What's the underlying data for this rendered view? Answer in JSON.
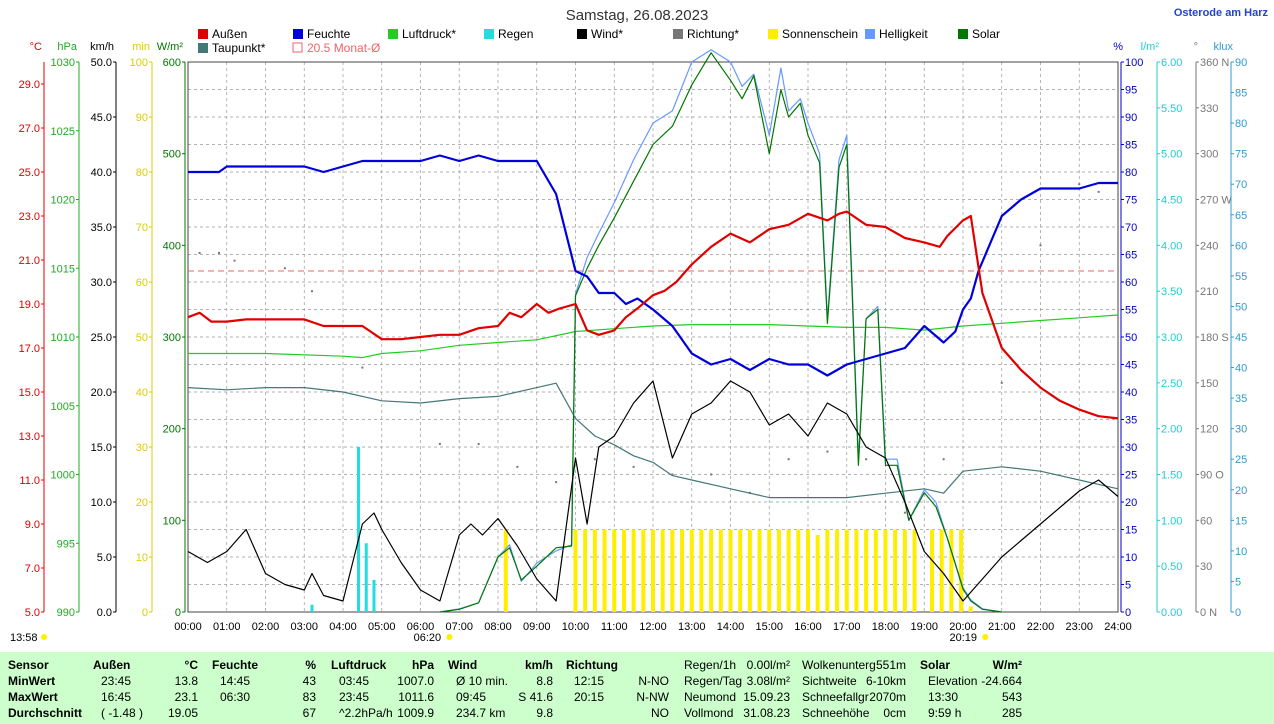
{
  "title": "Samstag, 26.08.2023",
  "location": "Osterode am Harz",
  "legend": [
    {
      "label": "Außen",
      "color": "#e00000"
    },
    {
      "label": "Feuchte",
      "color": "#0000dd"
    },
    {
      "label": "Luftdruck*",
      "color": "#22cc22"
    },
    {
      "label": "Regen",
      "color": "#22dddd"
    },
    {
      "label": "Wind*",
      "color": "#000000"
    },
    {
      "label": "Richtung*",
      "color": "#777777"
    },
    {
      "label": "Sonnenschein",
      "color": "#ffee00"
    },
    {
      "label": "Helligkeit",
      "color": "#6699ff"
    },
    {
      "label": "Solar",
      "color": "#007700"
    },
    {
      "label": "Taupunkt*",
      "color": "#447777"
    },
    {
      "label": "20.5 Monat-Ø",
      "color": "#ee6666"
    }
  ],
  "axes_left": [
    {
      "unit": "°C",
      "color": "#e00000",
      "ticks": [
        "29.0",
        "27.0",
        "25.0",
        "23.0",
        "21.0",
        "19.0",
        "17.0",
        "15.0",
        "13.0",
        "11.0",
        "9.0",
        "7.0",
        "5.0"
      ]
    },
    {
      "unit": "hPa",
      "color": "#22aa22",
      "ticks": [
        "1030",
        "1025",
        "1020",
        "1015",
        "1010",
        "1005",
        "1000",
        "995",
        "990"
      ]
    },
    {
      "unit": "km/h",
      "color": "#000000",
      "ticks": [
        "50.0",
        "45.0",
        "40.0",
        "35.0",
        "30.0",
        "25.0",
        "20.0",
        "15.0",
        "10.0",
        "5.0",
        "0.0"
      ]
    },
    {
      "unit": "min",
      "color": "#ddcc00",
      "ticks": [
        "100",
        "90",
        "80",
        "70",
        "60",
        "50",
        "40",
        "30",
        "20",
        "10",
        "0"
      ]
    },
    {
      "unit": "W/m²",
      "color": "#007700",
      "ticks": [
        "600",
        "500",
        "400",
        "300",
        "200",
        "100",
        "0"
      ]
    }
  ],
  "axes_right": [
    {
      "unit": "%",
      "color": "#0000cc",
      "ticks": [
        "100",
        "95",
        "90",
        "85",
        "80",
        "75",
        "70",
        "65",
        "60",
        "55",
        "50",
        "45",
        "40",
        "35",
        "30",
        "25",
        "20",
        "15",
        "10",
        "5",
        "0"
      ]
    },
    {
      "unit": "l/m²",
      "color": "#22cccc",
      "ticks": [
        "6.00",
        "5.50",
        "5.00",
        "4.50",
        "4.00",
        "3.50",
        "3.00",
        "2.50",
        "2.00",
        "1.50",
        "1.00",
        "0.50",
        "0.00"
      ]
    },
    {
      "unit": "°",
      "color": "#777777",
      "ticks": [
        "360 N",
        "330",
        "300",
        "270 W",
        "240",
        "210",
        "180 S",
        "150",
        "120",
        "90 O",
        "60",
        "30",
        "0 N"
      ]
    },
    {
      "unit": "klux",
      "color": "#3399cc",
      "ticks": [
        "90",
        "85",
        "80",
        "75",
        "70",
        "65",
        "60",
        "55",
        "50",
        "45",
        "40",
        "35",
        "30",
        "25",
        "20",
        "15",
        "10",
        "5",
        "0"
      ]
    }
  ],
  "x_ticks": [
    "00:00",
    "01:00",
    "02:00",
    "03:00",
    "04:00",
    "05:00",
    "06:00",
    "07:00",
    "08:00",
    "09:00",
    "10:00",
    "11:00",
    "12:00",
    "13:00",
    "14:00",
    "15:00",
    "16:00",
    "17:00",
    "18:00",
    "19:00",
    "20:00",
    "21:00",
    "22:00",
    "23:00",
    "24:00"
  ],
  "sunrise": "06:20",
  "sunset": "20:19",
  "footer_time": "13:58",
  "chart_data": {
    "type": "line",
    "title": "Samstag, 26.08.2023",
    "x_unit": "hours",
    "xlim": [
      0,
      24
    ],
    "month_avg_temp": 20.5,
    "series": [
      {
        "name": "Außen",
        "unit": "°C",
        "ylim": [
          5,
          30
        ],
        "x": [
          0,
          0.3,
          0.6,
          1,
          1.5,
          2,
          2.5,
          3,
          3.5,
          4,
          4.5,
          5,
          5.5,
          6,
          6.5,
          7,
          7.5,
          8,
          8.3,
          8.6,
          9,
          9.3,
          9.6,
          10,
          10.3,
          10.6,
          11,
          11.3,
          11.6,
          12,
          12.3,
          12.6,
          13,
          13.5,
          14,
          14.5,
          15,
          15.5,
          16,
          16.5,
          16.8,
          17,
          17.5,
          18,
          18.5,
          19,
          19.4,
          19.6,
          20,
          20.2,
          20.5,
          21,
          21.5,
          22,
          22.5,
          23,
          23.5,
          24
        ],
        "values": [
          18.4,
          18.6,
          18.2,
          18.2,
          18.3,
          18.3,
          18.3,
          18.3,
          18.0,
          18.0,
          18.0,
          17.4,
          17.4,
          17.5,
          17.6,
          17.6,
          17.9,
          18.0,
          18.6,
          18.4,
          19.0,
          18.6,
          18.8,
          19.0,
          17.8,
          17.6,
          17.8,
          18.4,
          18.8,
          19.4,
          19.6,
          20.0,
          20.8,
          21.6,
          22.2,
          21.8,
          22.4,
          22.6,
          23.1,
          22.8,
          23.1,
          23.2,
          22.6,
          22.5,
          22.0,
          21.8,
          21.6,
          22.1,
          22.8,
          23.0,
          19.5,
          17.0,
          16.0,
          15.2,
          14.6,
          14.2,
          13.9,
          13.8
        ]
      },
      {
        "name": "Feuchte",
        "unit": "%",
        "ylim": [
          0,
          100
        ],
        "x": [
          0,
          0.8,
          1,
          2,
          3,
          3.5,
          4,
          4.5,
          5,
          6,
          6.5,
          7,
          7.5,
          8,
          8.5,
          9,
          9.5,
          10,
          10.3,
          10.6,
          11,
          11.3,
          11.6,
          12,
          12.5,
          13,
          13.5,
          14,
          14.5,
          15,
          15.5,
          16,
          16.5,
          17,
          17.5,
          18,
          18.5,
          19,
          19.5,
          19.8,
          20,
          20.2,
          20.4,
          21,
          21.5,
          22,
          22.5,
          23,
          23.5,
          24
        ],
        "values": [
          80,
          80,
          81,
          81,
          81,
          80,
          81,
          82,
          82,
          82,
          83,
          82,
          83,
          82,
          82,
          82,
          76,
          62,
          61,
          58,
          58,
          56,
          57,
          55,
          52,
          47,
          45,
          46,
          44,
          46,
          45,
          45,
          43,
          45,
          46,
          47,
          48,
          52,
          49,
          51,
          55,
          57,
          62,
          72,
          75,
          77,
          77,
          77,
          78,
          78
        ]
      },
      {
        "name": "Luftdruck*",
        "unit": "hPa",
        "ylim": [
          990,
          1030
        ],
        "x": [
          0,
          2,
          4,
          4.5,
          5,
          6,
          7,
          8,
          9,
          10,
          11,
          12,
          13,
          14,
          15,
          16,
          17,
          18,
          19,
          20,
          21,
          22,
          23,
          24
        ],
        "values": [
          1008.8,
          1008.8,
          1008.6,
          1008.5,
          1008.8,
          1009.0,
          1009.4,
          1009.6,
          1009.8,
          1010.4,
          1010.6,
          1010.8,
          1010.9,
          1010.9,
          1010.9,
          1010.8,
          1010.7,
          1010.7,
          1010.5,
          1010.8,
          1011.0,
          1011.2,
          1011.4,
          1011.6
        ]
      },
      {
        "name": "Regen",
        "unit": "l/m²",
        "ylim": [
          0,
          6
        ],
        "type": "bar",
        "x": [
          3.2,
          4.4,
          4.6,
          4.8
        ],
        "values": [
          0.08,
          1.8,
          0.75,
          0.35
        ]
      },
      {
        "name": "Wind*",
        "unit": "km/h",
        "ylim": [
          0,
          50
        ],
        "x": [
          0,
          0.5,
          1,
          1.5,
          2,
          2.5,
          3,
          3.2,
          3.5,
          4,
          4.5,
          4.8,
          5,
          5.5,
          6,
          6.5,
          7,
          7.3,
          7.6,
          8,
          8.5,
          9,
          9.5,
          10,
          10.3,
          10.6,
          11,
          11.5,
          12,
          12.5,
          13,
          13.5,
          14,
          14.5,
          15,
          15.5,
          16,
          16.5,
          17,
          17.5,
          18,
          18.5,
          19,
          19.5,
          20,
          20.5,
          21,
          21.5,
          22,
          22.5,
          23,
          23.5,
          24
        ],
        "values": [
          5.5,
          4.5,
          5.5,
          7.5,
          3.5,
          2.5,
          2.0,
          3.5,
          1.5,
          1.0,
          8.0,
          9.0,
          7.5,
          4.5,
          2.0,
          1.0,
          7.0,
          8.0,
          7.0,
          8.5,
          6.0,
          3.0,
          1.0,
          14.0,
          8.0,
          15.0,
          16.0,
          19.0,
          21.0,
          14.0,
          18.0,
          19.0,
          21.0,
          20.0,
          17.0,
          18.0,
          16.0,
          19.0,
          18.0,
          15.0,
          14.0,
          10.0,
          5.5,
          3.5,
          1.0,
          3.0,
          5.0,
          6.5,
          8.0,
          9.5,
          11.0,
          12.0,
          10.5
        ]
      },
      {
        "name": "Richtung*",
        "unit": "°",
        "ylim": [
          0,
          360
        ],
        "type": "scatter",
        "x": [
          0.3,
          0.8,
          1.2,
          2.5,
          3.2,
          4.5,
          6.5,
          7.5,
          8.5,
          9.5,
          10.5,
          11.5,
          12.5,
          13.5,
          14.5,
          15.5,
          16.5,
          17.5,
          18.5,
          19.5,
          21,
          22,
          23,
          23.5
        ],
        "values": [
          235,
          235,
          230,
          225,
          210,
          160,
          110,
          110,
          95,
          85,
          100,
          95,
          90,
          90,
          78,
          100,
          105,
          100,
          65,
          100,
          150,
          240,
          280,
          275
        ]
      },
      {
        "name": "Sonnenschein",
        "unit": "min",
        "ylim": [
          0,
          100
        ],
        "type": "bar",
        "x": [
          8.2,
          10.0,
          10.25,
          10.5,
          10.75,
          11.0,
          11.25,
          11.5,
          11.75,
          12.0,
          12.25,
          12.5,
          12.75,
          13.0,
          13.25,
          13.5,
          13.75,
          14.0,
          14.25,
          14.5,
          14.75,
          15.0,
          15.25,
          15.5,
          15.75,
          16.0,
          16.25,
          16.5,
          16.75,
          17.0,
          17.25,
          17.5,
          17.75,
          18.0,
          18.25,
          18.5,
          18.75,
          19.2,
          19.45,
          19.7,
          19.95,
          20.2
        ],
        "values": [
          15,
          15,
          15,
          15,
          15,
          15,
          15,
          15,
          15,
          15,
          15,
          15,
          15,
          15,
          15,
          15,
          15,
          15,
          15,
          15,
          15,
          15,
          15,
          15,
          15,
          15,
          14,
          15,
          15,
          15,
          15,
          15,
          15,
          15,
          15,
          15,
          15,
          15,
          15,
          15,
          15,
          1
        ]
      },
      {
        "name": "Helligkeit",
        "unit": "klux",
        "ylim": [
          0,
          90
        ],
        "x": [
          6.5,
          7,
          7.5,
          8,
          8.3,
          8.6,
          9,
          9.5,
          9.9,
          10,
          10.3,
          10.6,
          11,
          11.5,
          12,
          12.5,
          13,
          13.5,
          14,
          14.3,
          14.6,
          15,
          15.3,
          15.5,
          15.8,
          16,
          16.3,
          16.5,
          16.8,
          17,
          17.3,
          17.5,
          17.8,
          18,
          18.3,
          18.6,
          19,
          19.3,
          19.6,
          20,
          20.2,
          20.5,
          21
        ],
        "values": [
          0,
          0.5,
          1.5,
          9,
          11,
          5,
          8,
          10,
          11,
          52,
          58,
          62,
          67,
          74,
          80,
          82,
          90,
          92,
          90,
          86,
          88,
          78,
          89,
          82,
          84,
          80,
          75,
          48,
          74,
          78,
          25,
          48,
          50,
          25,
          25,
          15,
          20,
          18,
          12,
          4,
          2,
          0.5,
          0
        ]
      },
      {
        "name": "Solar",
        "unit": "W/m²",
        "ylim": [
          0,
          600
        ],
        "x": [
          6.5,
          7,
          7.5,
          8,
          8.3,
          8.6,
          9,
          9.5,
          9.9,
          10,
          10.3,
          10.6,
          11,
          11.5,
          12,
          12.5,
          13,
          13.5,
          14,
          14.3,
          14.6,
          15,
          15.3,
          15.5,
          15.8,
          16,
          16.3,
          16.5,
          16.8,
          17,
          17.3,
          17.5,
          17.8,
          18,
          18.3,
          18.6,
          19,
          19.3,
          19.6,
          20,
          20.2,
          20.5,
          21
        ],
        "values": [
          0,
          3,
          10,
          60,
          70,
          35,
          50,
          70,
          72,
          345,
          375,
          400,
          430,
          470,
          510,
          530,
          575,
          610,
          580,
          560,
          585,
          500,
          570,
          540,
          555,
          520,
          490,
          315,
          485,
          510,
          160,
          320,
          330,
          160,
          160,
          100,
          130,
          115,
          80,
          25,
          12,
          3,
          0
        ]
      },
      {
        "name": "Taupunkt*",
        "unit": "°C",
        "ylim": [
          5,
          30
        ],
        "x": [
          0,
          1,
          2,
          3,
          4,
          5,
          6,
          7,
          8,
          9,
          9.5,
          10,
          10.5,
          11,
          11.5,
          12,
          12.5,
          13,
          14,
          15,
          16,
          17,
          18,
          19,
          19.5,
          20,
          21,
          22,
          23,
          23.5,
          24
        ],
        "values": [
          15.2,
          15.1,
          15.2,
          15.2,
          15.0,
          14.6,
          14.5,
          14.7,
          14.8,
          15.2,
          15.4,
          13.8,
          13.0,
          12.6,
          12.1,
          11.8,
          11.2,
          11.0,
          10.6,
          10.2,
          10.2,
          10.2,
          10.4,
          10.6,
          10.4,
          11.4,
          11.6,
          11.4,
          11.0,
          10.8,
          10.6
        ]
      }
    ]
  },
  "table": {
    "headers": [
      {
        "label": "Sensor",
        "unit": ""
      },
      {
        "label": "Außen",
        "unit": "°C"
      },
      {
        "label": "Feuchte",
        "unit": "%"
      },
      {
        "label": "Luftdruck",
        "unit": "hPa"
      },
      {
        "label": "Wind",
        "unit": "km/h"
      },
      {
        "label": "Richtung",
        "unit": ""
      }
    ],
    "rows": [
      {
        "label": "MinWert",
        "cells": [
          [
            "23:45",
            "13.8"
          ],
          [
            "14:45",
            "43"
          ],
          [
            "03:45",
            "1007.0"
          ],
          [
            "Ø 10 min.",
            "8.8"
          ],
          [
            "12:15",
            "N-NO"
          ]
        ]
      },
      {
        "label": "MaxWert",
        "cells": [
          [
            "16:45",
            "23.1"
          ],
          [
            "06:30",
            "83"
          ],
          [
            "23:45",
            "1011.6"
          ],
          [
            "09:45",
            "S 41.6"
          ],
          [
            "20:15",
            "N-NW"
          ]
        ]
      },
      {
        "label": "Durchschnitt",
        "cells": [
          [
            "( -1.48 )",
            "19.05"
          ],
          [
            "",
            "67"
          ],
          [
            "^2.2hPa/h",
            "1009.9"
          ],
          [
            "234.7 km",
            "9.8"
          ],
          [
            "",
            "NO"
          ]
        ]
      }
    ],
    "extra": [
      [
        [
          "Regen/1h",
          "0.00l/m²"
        ],
        [
          "Regen/Tag",
          "3.08l/m²"
        ],
        [
          "Neumond",
          "15.09.23"
        ],
        [
          "Vollmond",
          "31.08.23"
        ]
      ],
      [
        [
          "Wolkenunterg",
          "551m"
        ],
        [
          "Sichtweite",
          "6-10km"
        ],
        [
          "Schneefallgr",
          "2070m"
        ],
        [
          "Schneehöhe",
          "0cm"
        ]
      ]
    ],
    "solar": {
      "label": "Solar",
      "unit": "W/m²",
      "rows": [
        [
          "Elevation",
          "-24.664"
        ],
        [
          "13:30",
          "543"
        ],
        [
          "9:59 h",
          "285"
        ]
      ]
    }
  }
}
